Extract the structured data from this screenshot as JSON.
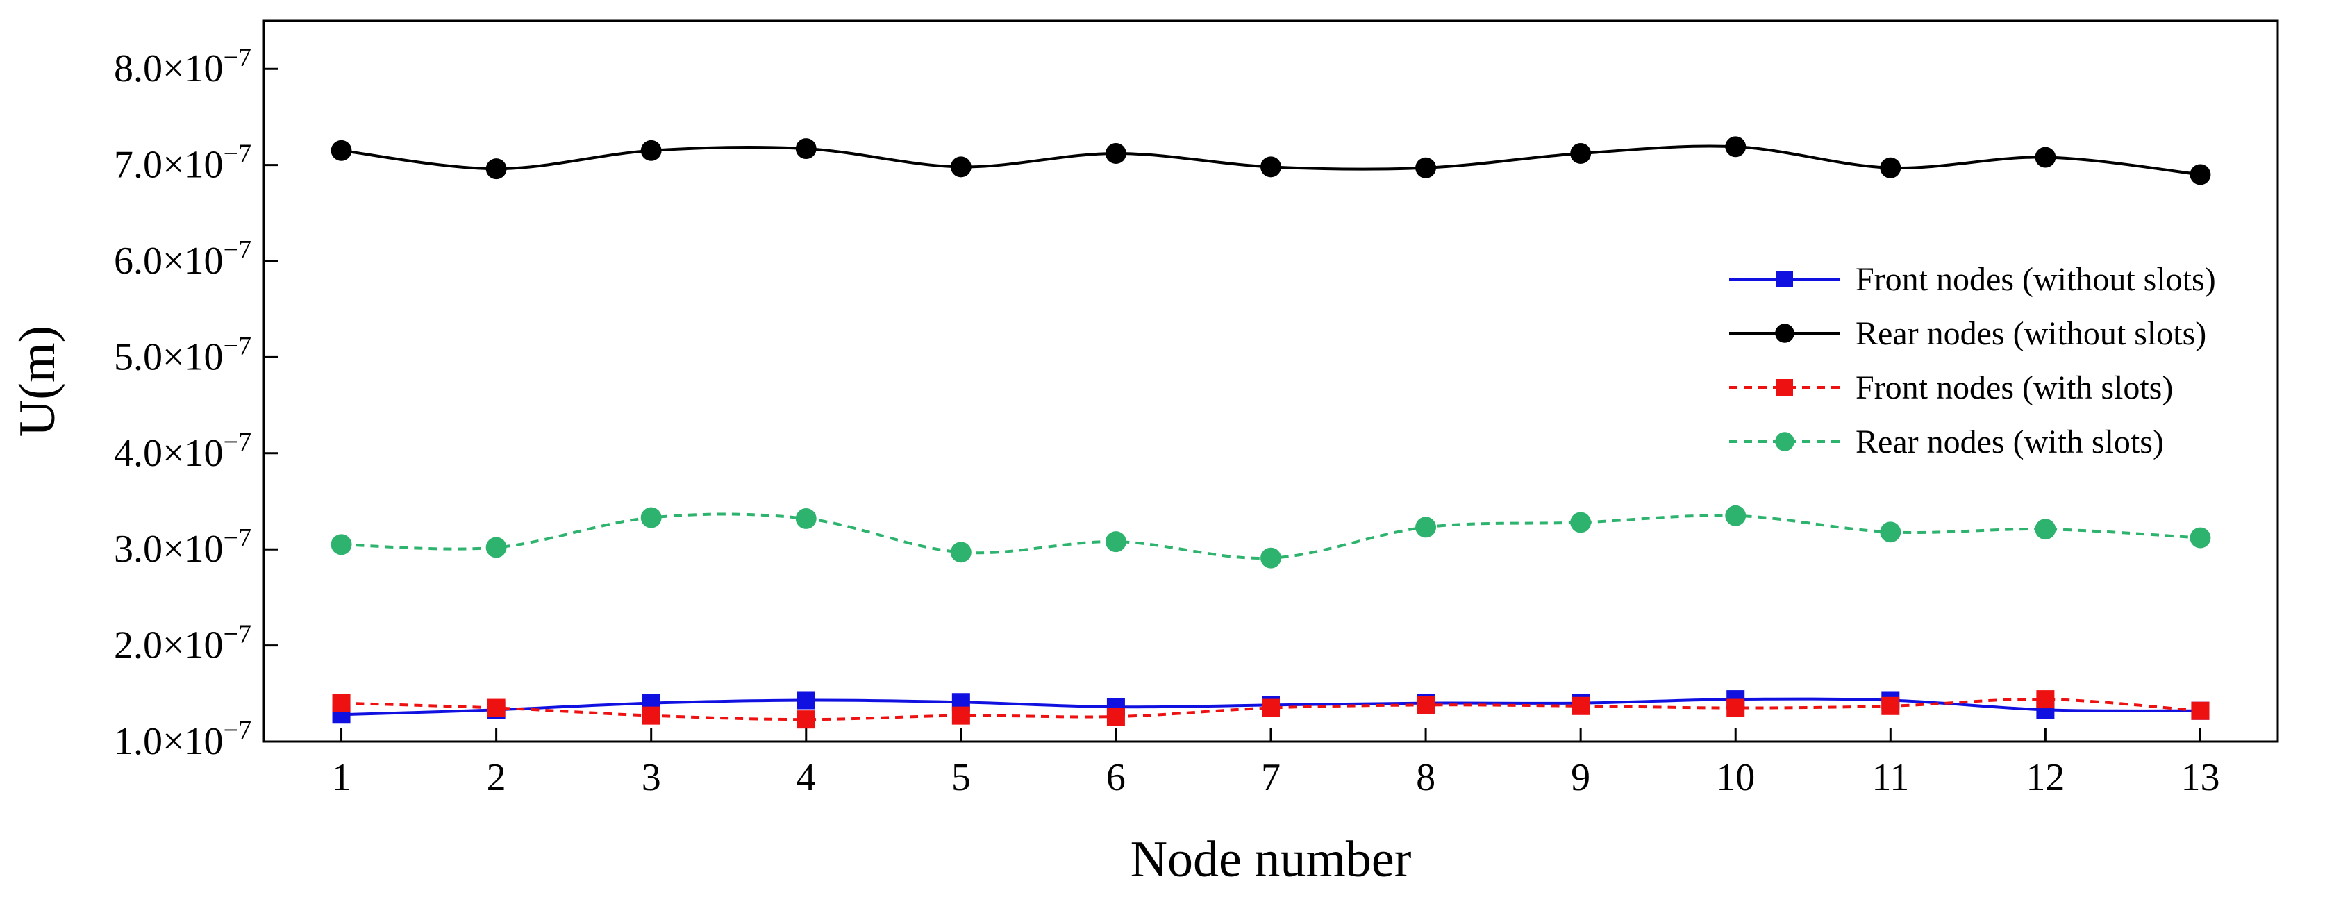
{
  "chart_data": {
    "type": "line",
    "title": "",
    "xlabel": "Node number",
    "ylabel": "U(m)",
    "x": [
      1,
      2,
      3,
      4,
      5,
      6,
      7,
      8,
      9,
      10,
      11,
      12,
      13
    ],
    "xlim": [
      0.5,
      13.5
    ],
    "ylim": [
      1e-07,
      8.5e-07
    ],
    "y_ticks": [
      1e-07,
      2e-07,
      3e-07,
      4e-07,
      5e-07,
      6e-07,
      7e-07,
      8e-07
    ],
    "y_tick_labels": [
      {
        "mantissa": "1.0×10",
        "exponent": "−7"
      },
      {
        "mantissa": "2.0×10",
        "exponent": "−7"
      },
      {
        "mantissa": "3.0×10",
        "exponent": "−7"
      },
      {
        "mantissa": "4.0×10",
        "exponent": "−7"
      },
      {
        "mantissa": "5.0×10",
        "exponent": "−7"
      },
      {
        "mantissa": "6.0×10",
        "exponent": "−7"
      },
      {
        "mantissa": "7.0×10",
        "exponent": "−7"
      },
      {
        "mantissa": "8.0×10",
        "exponent": "−7"
      }
    ],
    "x_tick_labels": [
      "1",
      "2",
      "3",
      "4",
      "5",
      "6",
      "7",
      "8",
      "9",
      "10",
      "11",
      "12",
      "13"
    ],
    "grid": false,
    "legend_position": "right",
    "series": [
      {
        "name": "Front nodes (without slots)",
        "color": "#1010e0",
        "line_style": "solid",
        "marker": "square",
        "values": [
          1.28e-07,
          1.33e-07,
          1.4e-07,
          1.43e-07,
          1.41e-07,
          1.36e-07,
          1.38e-07,
          1.4e-07,
          1.4e-07,
          1.44e-07,
          1.43e-07,
          1.33e-07,
          1.32e-07
        ]
      },
      {
        "name": "Rear nodes (without slots)",
        "color": "#000000",
        "line_style": "solid",
        "marker": "circle",
        "values": [
          7.15e-07,
          6.96e-07,
          7.15e-07,
          7.17e-07,
          6.98e-07,
          7.12e-07,
          6.98e-07,
          6.97e-07,
          7.12e-07,
          7.19e-07,
          6.97e-07,
          7.08e-07,
          6.9e-07
        ]
      },
      {
        "name": "Front nodes (with slots)",
        "color": "#ee1111",
        "line_style": "dashed",
        "marker": "square",
        "values": [
          1.4e-07,
          1.35e-07,
          1.27e-07,
          1.23e-07,
          1.27e-07,
          1.26e-07,
          1.35e-07,
          1.38e-07,
          1.37e-07,
          1.35e-07,
          1.37e-07,
          1.44e-07,
          1.32e-07
        ]
      },
      {
        "name": "Rear nodes (with slots)",
        "color": "#2db36e",
        "line_style": "dashed",
        "marker": "circle",
        "values": [
          3.05e-07,
          3.02e-07,
          3.33e-07,
          3.32e-07,
          2.97e-07,
          3.08e-07,
          2.91e-07,
          3.23e-07,
          3.28e-07,
          3.35e-07,
          3.18e-07,
          3.21e-07,
          3.12e-07
        ]
      }
    ]
  }
}
